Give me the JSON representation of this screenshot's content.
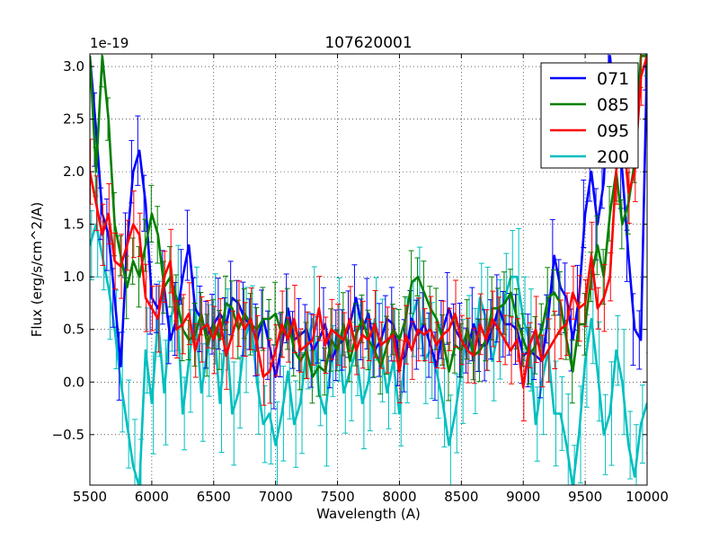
{
  "chart_data": {
    "type": "line",
    "title": "107620001",
    "xlabel": "Wavelength (A)",
    "ylabel": "Flux (erg/s/cm^2/A)",
    "offset_text": "1e-19",
    "xlim": [
      5500,
      10000
    ],
    "ylim": [
      -0.98,
      3.12
    ],
    "xticks": [
      5500,
      6000,
      6500,
      7000,
      7500,
      8000,
      8500,
      9000,
      9500,
      10000
    ],
    "xtick_labels": [
      "5500",
      "6000",
      "6500",
      "7000",
      "7500",
      "8000",
      "8500",
      "9000",
      "9500",
      "10000"
    ],
    "yticks": [
      -0.5,
      0.0,
      0.5,
      1.0,
      1.5,
      2.0,
      2.5,
      3.0
    ],
    "ytick_labels": [
      "−0.5",
      "0.0",
      "0.5",
      "1.0",
      "1.5",
      "2.0",
      "2.5",
      "3.0"
    ],
    "grid": true,
    "legend_position": "top-right",
    "series": [
      {
        "name": "071",
        "color": "#0000ff",
        "x": [
          5500,
          5550,
          5600,
          5650,
          5700,
          5750,
          5800,
          5850,
          5900,
          5950,
          6000,
          6050,
          6100,
          6150,
          6200,
          6250,
          6300,
          6350,
          6400,
          6450,
          6500,
          6550,
          6600,
          6650,
          6700,
          6750,
          6800,
          6850,
          6900,
          6950,
          7000,
          7050,
          7100,
          7150,
          7200,
          7250,
          7300,
          7350,
          7400,
          7450,
          7500,
          7550,
          7600,
          7650,
          7700,
          7750,
          7800,
          7850,
          7900,
          7950,
          8000,
          8050,
          8100,
          8150,
          8200,
          8250,
          8300,
          8350,
          8400,
          8450,
          8500,
          8550,
          8600,
          8650,
          8700,
          8750,
          8800,
          8850,
          8900,
          8950,
          9000,
          9050,
          9100,
          9150,
          9200,
          9250,
          9300,
          9350,
          9400,
          9450,
          9500,
          9550,
          9600,
          9650,
          9700,
          9750,
          9800,
          9850,
          9900,
          9950,
          10000
        ],
        "values": [
          3.1,
          2.4,
          1.6,
          1.4,
          0.8,
          0.15,
          1.3,
          2.0,
          2.2,
          1.7,
          0.8,
          0.7,
          0.9,
          0.4,
          0.6,
          1.0,
          1.3,
          0.7,
          0.6,
          0.45,
          0.55,
          0.65,
          0.55,
          0.8,
          0.75,
          0.6,
          0.55,
          0.4,
          0.6,
          0.35,
          0.05,
          0.35,
          0.7,
          0.4,
          0.45,
          0.5,
          0.3,
          0.4,
          0.55,
          0.2,
          0.35,
          0.4,
          0.55,
          0.8,
          0.5,
          0.65,
          0.3,
          0.4,
          0.6,
          0.55,
          0.2,
          0.25,
          0.6,
          0.45,
          0.55,
          0.35,
          0.15,
          0.5,
          0.7,
          0.5,
          0.4,
          0.3,
          0.55,
          0.35,
          0.35,
          0.5,
          0.7,
          0.55,
          0.55,
          0.5,
          0.25,
          0.3,
          0.25,
          0.2,
          0.6,
          1.2,
          0.9,
          0.8,
          0.4,
          0.8,
          1.6,
          2.0,
          1.5,
          1.9,
          3.1,
          2.5,
          2.0,
          1.2,
          0.5,
          0.4,
          3.1
        ]
      },
      {
        "name": "085",
        "color": "#008000",
        "x": [
          5500,
          5550,
          5600,
          5650,
          5700,
          5750,
          5800,
          5850,
          5900,
          5950,
          6000,
          6050,
          6100,
          6150,
          6200,
          6250,
          6300,
          6350,
          6400,
          6450,
          6500,
          6550,
          6600,
          6650,
          6700,
          6750,
          6800,
          6850,
          6900,
          6950,
          7000,
          7050,
          7100,
          7150,
          7200,
          7250,
          7300,
          7350,
          7400,
          7450,
          7500,
          7550,
          7600,
          7650,
          7700,
          7750,
          7800,
          7850,
          7900,
          7950,
          8000,
          8050,
          8100,
          8150,
          8200,
          8250,
          8300,
          8350,
          8400,
          8450,
          8500,
          8550,
          8600,
          8650,
          8700,
          8750,
          8800,
          8850,
          8900,
          8950,
          9000,
          9050,
          9100,
          9150,
          9200,
          9250,
          9300,
          9350,
          9400,
          9450,
          9500,
          9550,
          9600,
          9650,
          9700,
          9750,
          9800,
          9850,
          9900,
          9950,
          10000
        ],
        "values": [
          3.1,
          2.0,
          3.1,
          2.5,
          1.5,
          1.2,
          0.9,
          1.15,
          1.0,
          1.3,
          1.6,
          1.4,
          0.9,
          1.0,
          0.8,
          0.5,
          0.4,
          0.45,
          0.65,
          0.35,
          0.55,
          0.4,
          0.75,
          0.7,
          0.5,
          0.65,
          0.55,
          0.5,
          0.6,
          0.6,
          0.65,
          0.45,
          0.6,
          0.3,
          0.2,
          0.3,
          0.05,
          0.15,
          0.1,
          0.4,
          0.3,
          0.55,
          0.2,
          0.45,
          0.6,
          0.4,
          0.3,
          0.15,
          0.35,
          0.5,
          0.4,
          0.6,
          0.95,
          1.0,
          0.85,
          0.7,
          0.6,
          0.4,
          0.1,
          0.35,
          0.3,
          0.5,
          0.25,
          0.3,
          0.4,
          0.7,
          0.7,
          0.75,
          0.85,
          0.6,
          0.4,
          0.25,
          0.35,
          0.5,
          0.8,
          0.85,
          0.75,
          0.4,
          0.1,
          0.55,
          0.55,
          1.0,
          1.3,
          1.0,
          1.6,
          2.0,
          1.5,
          1.7,
          2.1,
          3.1,
          3.1
        ]
      },
      {
        "name": "095",
        "color": "#ff0000",
        "x": [
          5500,
          5550,
          5600,
          5650,
          5700,
          5750,
          5800,
          5850,
          5900,
          5950,
          6000,
          6050,
          6100,
          6150,
          6200,
          6250,
          6300,
          6350,
          6400,
          6450,
          6500,
          6550,
          6600,
          6650,
          6700,
          6750,
          6800,
          6850,
          6900,
          6950,
          7000,
          7050,
          7100,
          7150,
          7200,
          7250,
          7300,
          7350,
          7400,
          7450,
          7500,
          7550,
          7600,
          7650,
          7700,
          7750,
          7800,
          7850,
          7900,
          7950,
          8000,
          8050,
          8100,
          8150,
          8200,
          8250,
          8300,
          8350,
          8400,
          8450,
          8500,
          8550,
          8600,
          8650,
          8700,
          8750,
          8800,
          8850,
          8900,
          8950,
          9000,
          9050,
          9100,
          9150,
          9200,
          9250,
          9300,
          9350,
          9400,
          9450,
          9500,
          9550,
          9600,
          9650,
          9700,
          9750,
          9800,
          9850,
          9900,
          9950,
          10000
        ],
        "values": [
          2.0,
          1.7,
          1.4,
          1.6,
          1.15,
          1.1,
          1.3,
          1.5,
          1.4,
          0.8,
          0.7,
          0.6,
          1.0,
          1.15,
          0.5,
          0.55,
          0.65,
          0.3,
          0.5,
          0.55,
          0.4,
          0.6,
          0.25,
          0.45,
          0.65,
          0.5,
          0.6,
          0.35,
          0.05,
          0.1,
          0.3,
          0.55,
          0.4,
          0.6,
          0.3,
          0.35,
          0.4,
          0.7,
          0.35,
          0.5,
          0.45,
          0.4,
          0.6,
          0.3,
          0.45,
          0.4,
          0.55,
          0.35,
          0.4,
          0.45,
          0.1,
          0.45,
          0.3,
          0.5,
          0.45,
          0.5,
          0.35,
          0.45,
          0.5,
          0.65,
          0.4,
          0.3,
          0.25,
          0.55,
          0.4,
          0.6,
          0.5,
          0.4,
          0.3,
          0.4,
          -0.05,
          0.35,
          0.5,
          0.2,
          0.3,
          0.4,
          0.5,
          0.55,
          0.85,
          0.7,
          0.75,
          1.2,
          0.7,
          0.8,
          1.0,
          2.0,
          2.5,
          1.8,
          2.0,
          2.9,
          3.1
        ]
      },
      {
        "name": "200",
        "color": "#00bfbf",
        "x": [
          5500,
          5550,
          5600,
          5650,
          5700,
          5750,
          5800,
          5850,
          5900,
          5950,
          6000,
          6050,
          6100,
          6150,
          6200,
          6250,
          6300,
          6350,
          6400,
          6450,
          6500,
          6550,
          6600,
          6650,
          6700,
          6750,
          6800,
          6850,
          6900,
          6950,
          7000,
          7050,
          7100,
          7150,
          7200,
          7250,
          7300,
          7350,
          7400,
          7450,
          7500,
          7550,
          7600,
          7650,
          7700,
          7750,
          7800,
          7850,
          7900,
          7950,
          8000,
          8050,
          8100,
          8150,
          8200,
          8250,
          8300,
          8350,
          8400,
          8450,
          8500,
          8550,
          8600,
          8650,
          8700,
          8750,
          8800,
          8850,
          8900,
          8950,
          9000,
          9050,
          9100,
          9150,
          9200,
          9250,
          9300,
          9350,
          9400,
          9450,
          9500,
          9550,
          9600,
          9650,
          9700,
          9750,
          9800,
          9850,
          9900,
          9950,
          10000
        ],
        "values": [
          1.3,
          1.5,
          1.2,
          0.9,
          0.5,
          0.0,
          -0.4,
          -0.8,
          -1.0,
          0.3,
          -0.2,
          0.6,
          -0.1,
          0.6,
          0.8,
          -0.3,
          0.2,
          0.7,
          -0.1,
          0.3,
          0.6,
          -0.2,
          0.5,
          -0.3,
          -0.1,
          0.4,
          0.6,
          0.0,
          -0.4,
          -0.3,
          -0.6,
          -0.3,
          0.1,
          -0.4,
          -0.2,
          0.3,
          0.6,
          -0.1,
          -0.3,
          0.2,
          0.5,
          -0.1,
          0.1,
          0.3,
          -0.2,
          0.0,
          0.6,
          0.3,
          -0.1,
          0.2,
          -0.3,
          0.3,
          0.6,
          0.8,
          0.2,
          0.3,
          0.1,
          -0.2,
          -0.6,
          -0.3,
          0.1,
          0.5,
          0.2,
          0.8,
          0.6,
          0.2,
          0.5,
          0.8,
          1.0,
          1.0,
          0.6,
          0.4,
          -0.4,
          0.0,
          0.3,
          -0.3,
          -0.3,
          -0.6,
          -1.0,
          -0.5,
          0.2,
          0.6,
          0.1,
          -0.5,
          -0.3,
          0.3,
          0.0,
          -0.6,
          -0.9,
          -0.4,
          -0.2
        ]
      }
    ]
  }
}
